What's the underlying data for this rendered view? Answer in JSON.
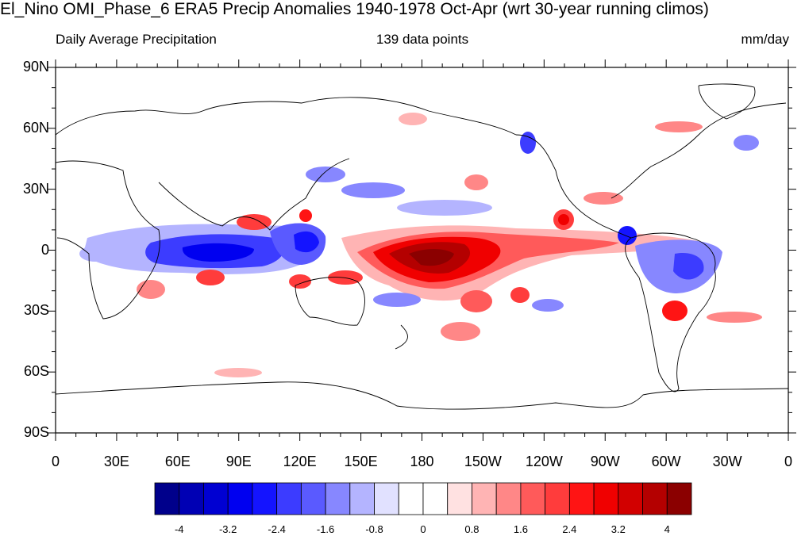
{
  "title": "El_Nino OMI_Phase_6 ERA5 Precip Anomalies 1940-1978 Oct-Apr (wrt 30-year running climos)",
  "subtitle_left": "Daily Average Precipitation",
  "subtitle_center": "139 data points",
  "subtitle_right": "mm/day",
  "lat_labels": [
    "90N",
    "60N",
    "30N",
    "0",
    "30S",
    "60S",
    "90S"
  ],
  "lon_labels": [
    "0",
    "30E",
    "60E",
    "90E",
    "120E",
    "150E",
    "180",
    "150W",
    "120W",
    "90W",
    "60W",
    "30W",
    "0"
  ],
  "colorbar": {
    "labels": [
      "-4",
      "-3.2",
      "-2.4",
      "-1.6",
      "-0.8",
      "0",
      "0.8",
      "1.6",
      "2.4",
      "3.2",
      "4"
    ],
    "colors": [
      "#00008b",
      "#0000b4",
      "#0000d2",
      "#0000f0",
      "#1414ff",
      "#3c3cff",
      "#5a5aff",
      "#8787ff",
      "#b4b4ff",
      "#e1e1ff",
      "#ffffff",
      "#ffffff",
      "#ffe1e1",
      "#ffb4b4",
      "#ff8787",
      "#ff5a5a",
      "#ff3c3c",
      "#ff1414",
      "#f00000",
      "#d20000",
      "#b40000",
      "#8b0000"
    ]
  },
  "map_data": {
    "type": "filled-contour-map",
    "projection": "cylindrical-equidistant",
    "lon_range": [
      0,
      360
    ],
    "lat_range": [
      -90,
      90
    ],
    "units": "mm/day",
    "anomaly_regions": [
      {
        "region": "central equatorial Pacific",
        "lon": [
          160,
          220
        ],
        "lat": [
          -15,
          8
        ],
        "sign": "positive",
        "max_approx": 4.5
      },
      {
        "region": "equatorial Indian Ocean",
        "lon": [
          50,
          105
        ],
        "lat": [
          -12,
          5
        ],
        "sign": "negative",
        "min_approx": -3.2
      },
      {
        "region": "Maritime Continent",
        "lon": [
          100,
          135
        ],
        "lat": [
          -8,
          10
        ],
        "sign": "negative",
        "min_approx": -3.2
      },
      {
        "region": "South Atlantic / Brazil",
        "lon": [
          300,
          330
        ],
        "lat": [
          -25,
          0
        ],
        "sign": "negative",
        "min_approx": -2.4
      },
      {
        "region": "southeastern South America",
        "lon": [
          300,
          310
        ],
        "lat": [
          -35,
          -25
        ],
        "sign": "positive",
        "max_approx": 3.2
      },
      {
        "region": "eastern Pacific off Central America",
        "lon": [
          245,
          260
        ],
        "lat": [
          8,
          20
        ],
        "sign": "positive",
        "max_approx": 3.2
      }
    ]
  }
}
